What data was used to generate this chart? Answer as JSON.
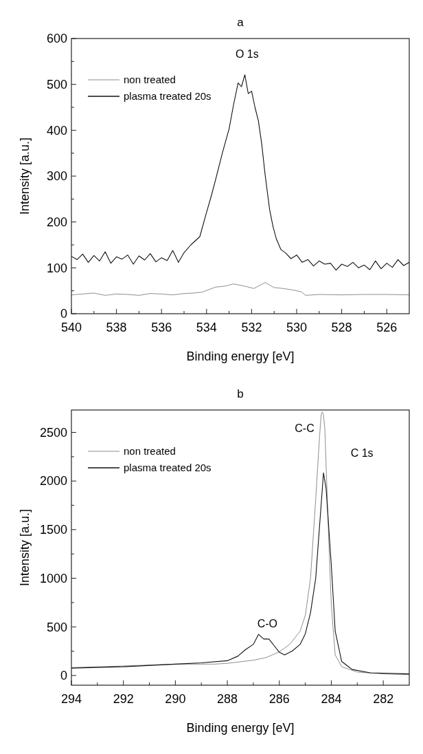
{
  "chart_data": [
    {
      "type": "line",
      "title": "a",
      "xlabel": "Binding energy [eV]",
      "ylabel": "Intensity [a.u.]",
      "xlim": [
        540,
        525
      ],
      "xticks": [
        540,
        538,
        536,
        534,
        532,
        530,
        528,
        526
      ],
      "ylim": [
        0,
        600
      ],
      "yticks": [
        0,
        100,
        200,
        300,
        400,
        500,
        600
      ],
      "legend": "top left",
      "grid": false,
      "annotations": [
        "O 1s"
      ],
      "series": [
        {
          "name": "non treated",
          "color": "#808080",
          "x": [
            540,
            539,
            538.5,
            538,
            537.5,
            537,
            536.5,
            536,
            535.5,
            535,
            534.6,
            534.2,
            533.6,
            533.2,
            532.8,
            532.3,
            531.9,
            531.4,
            531.0,
            530.6,
            530.2,
            529.8,
            529.6,
            529,
            528,
            527,
            526,
            525
          ],
          "values": [
            41,
            45,
            40,
            43,
            42,
            40,
            44,
            43,
            41,
            44,
            45,
            47,
            58,
            60,
            65,
            60,
            55,
            68,
            57,
            55,
            52,
            48,
            40,
            42,
            41,
            42,
            42,
            41
          ]
        },
        {
          "name": "plasma treated 20s",
          "color": "#111111",
          "x": [
            540,
            539.75,
            539.5,
            539.25,
            539,
            538.75,
            538.5,
            538.25,
            538,
            537.75,
            537.5,
            537.25,
            537,
            536.75,
            536.5,
            536.25,
            536,
            535.75,
            535.5,
            535.25,
            535.0,
            534.7,
            534.3,
            534.0,
            533.8,
            533.6,
            533.3,
            533.0,
            532.8,
            532.6,
            532.45,
            532.3,
            532.15,
            532.0,
            531.85,
            531.7,
            531.55,
            531.4,
            531.2,
            531.05,
            530.9,
            530.7,
            530.5,
            530.25,
            530,
            529.75,
            529.5,
            529.25,
            529,
            528.75,
            528.5,
            528.25,
            528,
            527.75,
            527.5,
            527.25,
            527,
            526.75,
            526.5,
            526.25,
            526,
            525.75,
            525.5,
            525.25,
            525
          ],
          "values": [
            125,
            118,
            130,
            112,
            127,
            115,
            135,
            110,
            124,
            119,
            128,
            108,
            126,
            117,
            131,
            113,
            122,
            116,
            138,
            112,
            133,
            150,
            168,
            221,
            255,
            292,
            350,
            403,
            456,
            503,
            495,
            521,
            480,
            485,
            450,
            421,
            370,
            303,
            227,
            190,
            163,
            140,
            133,
            120,
            128,
            112,
            118,
            104,
            115,
            108,
            110,
            95,
            108,
            103,
            112,
            100,
            106,
            96,
            115,
            98,
            110,
            101,
            118,
            105,
            112
          ]
        }
      ]
    },
    {
      "type": "line",
      "title": "b",
      "xlabel": "Binding energy  [eV]",
      "ylabel": "Intensity [a.u.]",
      "xlim": [
        294,
        281
      ],
      "xticks": [
        294,
        292,
        290,
        288,
        286,
        284,
        282
      ],
      "ylim": [
        -100,
        2730
      ],
      "yticks": [
        0,
        500,
        1000,
        1500,
        2000,
        2500
      ],
      "legend": "top left",
      "grid": false,
      "annotations": [
        "C-C",
        "C 1s",
        "C-O"
      ],
      "series": [
        {
          "name": "non treated",
          "color": "#808080",
          "x": [
            294,
            292,
            290,
            288.5,
            288,
            287,
            286.5,
            286,
            285.6,
            285.2,
            285.0,
            284.8,
            284.6,
            284.45,
            284.39,
            284.35,
            284.31,
            284.25,
            284.1,
            284.0,
            283.85,
            283.6,
            283.0,
            282,
            281
          ],
          "values": [
            81,
            98,
            117,
            117,
            125,
            157,
            185,
            244,
            320,
            456,
            619,
            999,
            1813,
            2464,
            2680,
            2710,
            2690,
            2546,
            1406,
            727,
            212,
            90,
            35,
            16,
            8
          ]
        },
        {
          "name": "plasma treated 20s",
          "color": "#111111",
          "x": [
            294,
            292,
            290,
            289,
            288,
            287.6,
            287.3,
            287.0,
            286.8,
            286.6,
            286.4,
            286.2,
            286.0,
            285.8,
            285.5,
            285.2,
            285.0,
            284.8,
            284.6,
            284.45,
            284.3,
            284.2,
            284.0,
            283.85,
            283.6,
            283.2,
            282.5,
            281
          ],
          "values": [
            76,
            90,
            117,
            130,
            152,
            198,
            266,
            320,
            423,
            375,
            375,
            307,
            239,
            212,
            252,
            320,
            429,
            646,
            999,
            1542,
            2084,
            1922,
            1134,
            456,
            144,
            62,
            27,
            16
          ]
        }
      ]
    }
  ]
}
